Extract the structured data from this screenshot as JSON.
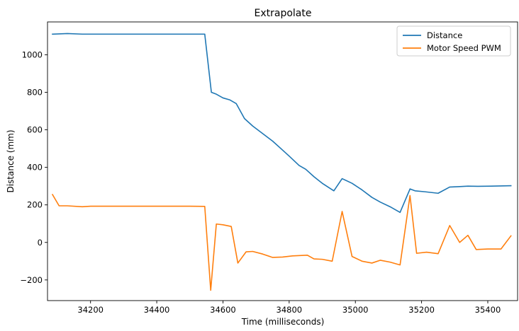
{
  "chart_data": {
    "type": "line",
    "title": "Extrapolate",
    "xlabel": "Time (milliseconds)",
    "ylabel": "Distance (mm)",
    "xlim": [
      34070,
      35490
    ],
    "ylim": [
      -310,
      1175
    ],
    "xticks": [
      34200,
      34400,
      34600,
      34800,
      35000,
      35200,
      35400
    ],
    "yticks": [
      -200,
      0,
      200,
      400,
      600,
      800,
      1000
    ],
    "grid": false,
    "legend_position": "top-right",
    "series": [
      {
        "name": "Distance",
        "color": "#1f77b4",
        "x": [
          34085,
          34130,
          34175,
          34220,
          34300,
          34400,
          34500,
          34545,
          34565,
          34580,
          34600,
          34620,
          34640,
          34665,
          34690,
          34720,
          34750,
          34775,
          34800,
          34830,
          34850,
          34875,
          34900,
          34935,
          34960,
          34990,
          35020,
          35050,
          35075,
          35105,
          35135,
          35165,
          35180,
          35210,
          35250,
          35285,
          35310,
          35340,
          35370,
          35410,
          35470
        ],
        "y": [
          1110,
          1113,
          1110,
          1110,
          1110,
          1110,
          1110,
          1110,
          800,
          790,
          770,
          760,
          740,
          660,
          620,
          580,
          540,
          500,
          460,
          410,
          390,
          350,
          315,
          275,
          340,
          315,
          280,
          240,
          215,
          190,
          160,
          285,
          275,
          270,
          262,
          295,
          297,
          300,
          299,
          300,
          302
        ]
      },
      {
        "name": "Motor Speed PWM",
        "color": "#ff7f0e",
        "x": [
          34085,
          34105,
          34130,
          34175,
          34200,
          34300,
          34400,
          34500,
          34545,
          34563,
          34580,
          34600,
          34625,
          34645,
          34670,
          34690,
          34720,
          34750,
          34780,
          34810,
          34855,
          34875,
          34900,
          34930,
          34960,
          34990,
          35020,
          35050,
          35075,
          35105,
          35135,
          35165,
          35185,
          35215,
          35250,
          35285,
          35315,
          35340,
          35365,
          35400,
          35440,
          35470
        ],
        "y": [
          255,
          195,
          195,
          190,
          193,
          193,
          193,
          193,
          192,
          -255,
          98,
          94,
          85,
          -110,
          -50,
          -48,
          -62,
          -80,
          -78,
          -72,
          -68,
          -88,
          -90,
          -100,
          165,
          -75,
          -100,
          -110,
          -95,
          -105,
          -120,
          250,
          -58,
          -52,
          -60,
          90,
          0,
          38,
          -38,
          -35,
          -35,
          35
        ]
      }
    ]
  }
}
